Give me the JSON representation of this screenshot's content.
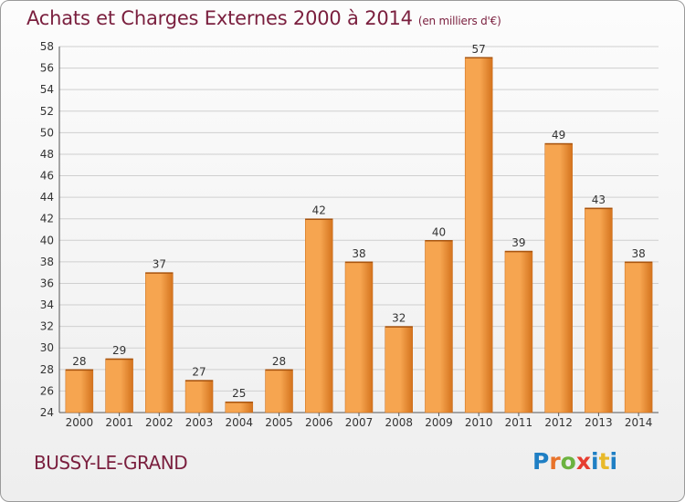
{
  "header": {
    "title": "Achats et Charges Externes 2000 à 2014",
    "unit": "(en milliers d'€)"
  },
  "footer": {
    "commune": "BUSSY-LE-GRAND",
    "logo": [
      "P",
      "r",
      "o",
      "x",
      "i",
      "t",
      "i"
    ],
    "logo_colors": [
      "#1f7fc4",
      "#e8732a",
      "#6cb33f",
      "#e63c2f",
      "#1f7fc4",
      "#e8b92a",
      "#1f7fc4"
    ]
  },
  "colors": {
    "bar_light": "#f6a550",
    "bar_dark": "#d4731d",
    "grid": "#cfcfcf",
    "title": "#7a1f3e"
  },
  "chart_data": {
    "type": "bar",
    "title": "Achats et Charges Externes 2000 à 2014",
    "subtitle": "(en milliers d'€)",
    "categories": [
      "2000",
      "2001",
      "2002",
      "2003",
      "2004",
      "2005",
      "2006",
      "2007",
      "2008",
      "2009",
      "2010",
      "2011",
      "2012",
      "2013",
      "2014"
    ],
    "values": [
      28,
      29,
      37,
      27,
      25,
      28,
      42,
      38,
      32,
      40,
      57,
      39,
      49,
      43,
      38
    ],
    "ylim": [
      24,
      58
    ],
    "yticks": [
      24,
      26,
      28,
      30,
      32,
      34,
      36,
      38,
      40,
      42,
      44,
      46,
      48,
      50,
      52,
      54,
      56,
      58
    ],
    "grid": true,
    "legend": "none"
  }
}
